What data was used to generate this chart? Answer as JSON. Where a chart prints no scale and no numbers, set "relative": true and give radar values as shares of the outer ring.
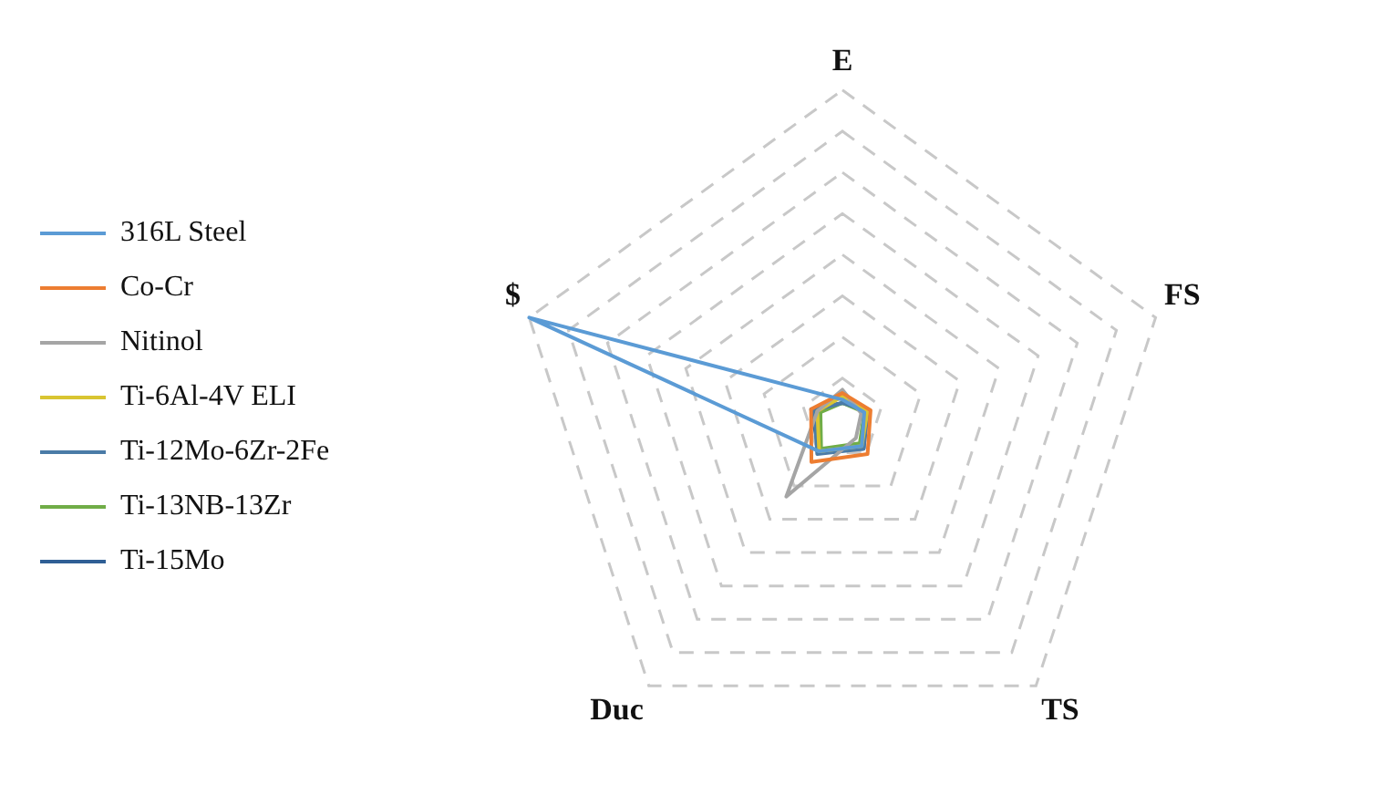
{
  "chart_data": {
    "type": "radar",
    "relative": true,
    "categories": [
      "E",
      "FS",
      "TS",
      "Duc",
      "$"
    ],
    "grid": true,
    "legend": "left",
    "marker": "none",
    "series": [
      {
        "name": "316L Steel",
        "color": "#5b9bd5",
        "values": [
          0.06,
          0.07,
          0.1,
          0.12,
          1.0
        ]
      },
      {
        "name": "Co-Cr",
        "color": "#ed7d31",
        "values": [
          0.08,
          0.09,
          0.13,
          0.16,
          0.1
        ]
      },
      {
        "name": "Nitinol",
        "color": "#a5a5a5",
        "values": [
          0.09,
          0.06,
          0.07,
          0.29,
          0.08
        ]
      },
      {
        "name": "Ti-6Al-4V ELI",
        "color": "#d9c532",
        "values": [
          0.07,
          0.08,
          0.1,
          0.12,
          0.08
        ]
      },
      {
        "name": "Ti-12Mo-6Zr-2Fe",
        "color": "#4a7ba7",
        "values": [
          0.05,
          0.08,
          0.11,
          0.13,
          0.09
        ]
      },
      {
        "name": "Ti-13NB-13Zr",
        "color": "#70ad47",
        "values": [
          0.05,
          0.07,
          0.09,
          0.11,
          0.07
        ]
      },
      {
        "name": "Ti-15Mo",
        "color": "#2f5f95",
        "values": [
          0.05,
          0.08,
          0.11,
          0.12,
          0.1
        ]
      }
    ]
  }
}
